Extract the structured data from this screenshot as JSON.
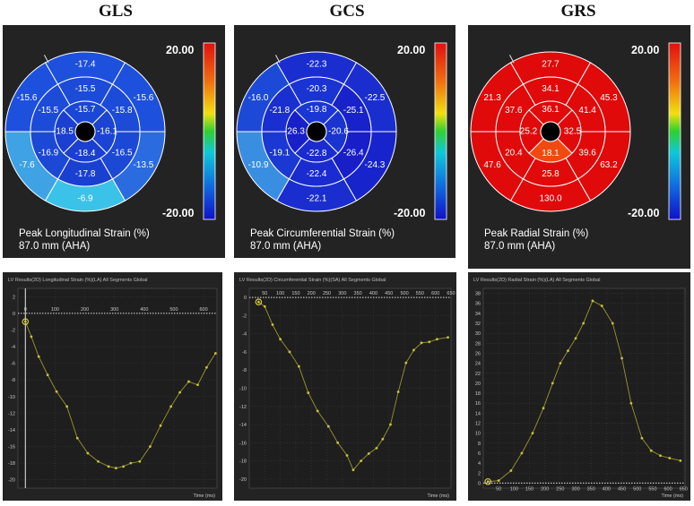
{
  "columns": [
    {
      "title": "GLS",
      "bullseye": {
        "caption1": "Peak Longitudinal Strain (%)",
        "caption2": "87.0 mm (AHA)",
        "scale_max": "20.00",
        "scale_min": "-20.00",
        "colormap": "blue-green-yellow-red",
        "rings": {
          "outer": [
            "-17.4",
            "-15.6",
            "-13.5",
            "-6.9",
            "-7.6",
            "-15.6"
          ],
          "middle": [
            "-15.5",
            "-15.8",
            "-16.5",
            "-17.8",
            "-16.9",
            "-15.5"
          ],
          "inner": [
            "-15.7",
            "-16.1",
            "-18.4",
            "-18.5"
          ]
        },
        "colors": {
          "outer": [
            "#1d50dc",
            "#1d50dc",
            "#2a6be0",
            "#3bc2e8",
            "#3fa2e5",
            "#1d50dc"
          ],
          "middle": [
            "#1c4bd8",
            "#1c4bd8",
            "#1c48d6",
            "#1a40d2",
            "#1c48d6",
            "#1c4bd8"
          ],
          "inner": [
            "#1b47d6",
            "#1b44d4",
            "#1a3fd1",
            "#1a3fd1"
          ]
        }
      },
      "line_chart": {
        "header": "LV Results(2D) Longitudinal Strain (%)(LA) All Segments Global",
        "x_unit": "Time (ms)",
        "x_ticks": [
          "0",
          "100",
          "200",
          "300",
          "400",
          "500",
          "600"
        ],
        "y_ticks": [
          "2",
          "0",
          "-2",
          "-4",
          "-6",
          "-8",
          "-10",
          "-12",
          "-14",
          "-16",
          "-18",
          "-20"
        ]
      }
    },
    {
      "title": "GCS",
      "bullseye": {
        "caption1": "Peak Circumferential Strain (%)",
        "caption2": "87.0 mm (AHA)",
        "scale_max": "20.00",
        "scale_min": "-20.00",
        "colormap": "blue-green-yellow-red",
        "rings": {
          "outer": [
            "-22.3",
            "-22.5",
            "-24.3",
            "-22.1",
            "-10.9",
            "-16.0"
          ],
          "middle": [
            "-20.3",
            "-25.1",
            "-26.4",
            "-22.4",
            "-19.1",
            "-21.8"
          ],
          "inner": [
            "-19.8",
            "-20.6",
            "-22.8",
            "-26.3"
          ]
        },
        "colors": {
          "outer": [
            "#1a2ed0",
            "#1a2ed0",
            "#1824cb",
            "#1a2ed0",
            "#3a8ee2",
            "#1c4ad7"
          ],
          "middle": [
            "#1a34d2",
            "#1822ca",
            "#181ec8",
            "#1a2ccf",
            "#1b38d3",
            "#1a2fd0"
          ],
          "inner": [
            "#1a36d3",
            "#1a34d2",
            "#1a2ccf",
            "#1820c9"
          ]
        }
      },
      "line_chart": {
        "header": "LV Results(2D) Circumferential Strain (%)(SA) All Segments Global",
        "x_unit": "Time (ms)",
        "x_ticks": [
          "50",
          "100",
          "150",
          "200",
          "250",
          "300",
          "350",
          "400",
          "450",
          "500",
          "550",
          "600",
          "650"
        ],
        "y_ticks": [
          "0",
          "-2",
          "-4",
          "-6",
          "-8",
          "-10",
          "-12",
          "-14",
          "-16",
          "-18",
          "-20"
        ]
      }
    },
    {
      "title": "GRS",
      "bullseye": {
        "caption1": "Peak Radial Strain (%)",
        "caption2": "87.0 mm (AHA)",
        "scale_max": "20.00",
        "scale_min": "-20.00",
        "colormap": "blue-green-yellow-red",
        "rings": {
          "outer": [
            "27.7",
            "45.3",
            "63.2",
            "130.0",
            "47.6",
            "21.3"
          ],
          "middle": [
            "34.1",
            "41.4",
            "39.6",
            "25.8",
            "20.4",
            "37.6"
          ],
          "inner": [
            "36.1",
            "32.5",
            "18.1",
            "25.2"
          ]
        },
        "colors": {
          "outer": [
            "#e00a0a",
            "#e00a0a",
            "#e00a0a",
            "#e00a0a",
            "#e00a0a",
            "#e00a0a"
          ],
          "middle": [
            "#e00a0a",
            "#e00a0a",
            "#e00a0a",
            "#e00a0a",
            "#e00a0a",
            "#e00a0a"
          ],
          "inner": [
            "#e00a0a",
            "#e00a0a",
            "#f04a10",
            "#e00a0a"
          ]
        }
      },
      "line_chart": {
        "header": "LV Results(2D) Radial Strain (%)(LA) All Segments Global",
        "x_unit": "Time (ms)",
        "x_ticks": [
          "50",
          "100",
          "150",
          "200",
          "250",
          "300",
          "350",
          "400",
          "450",
          "500",
          "550",
          "600",
          "650"
        ],
        "y_ticks": [
          "38",
          "36",
          "34",
          "32",
          "30",
          "28",
          "26",
          "24",
          "22",
          "20",
          "18",
          "16",
          "14",
          "12",
          "10",
          "8",
          "6",
          "4",
          "2",
          "0"
        ]
      }
    }
  ],
  "chart_data": [
    {
      "type": "line",
      "title": "LV Results(2D) Longitudinal Strain (%)(LA) All Segments Global",
      "xlabel": "Time (ms)",
      "ylabel": "",
      "xlim": [
        -25,
        645
      ],
      "ylim": [
        -21,
        3
      ],
      "grid": true,
      "series": [
        {
          "color": "#c9c23a",
          "x": [
            0,
            20,
            45,
            75,
            105,
            140,
            175,
            210,
            245,
            280,
            305,
            330,
            355,
            385,
            420,
            455,
            490,
            520,
            550,
            580,
            610,
            640
          ],
          "y": [
            -1.0,
            -2.8,
            -5.2,
            -7.4,
            -9.4,
            -11.2,
            -15.0,
            -16.8,
            -17.8,
            -18.4,
            -18.6,
            -18.4,
            -18.0,
            -17.8,
            -16.0,
            -13.5,
            -11.2,
            -9.5,
            -8.2,
            -8.6,
            -6.5,
            -4.8
          ]
        }
      ]
    },
    {
      "type": "line",
      "title": "LV Results(2D) Circumferential Strain (%)(SA) All Segments Global",
      "xlabel": "Time (ms)",
      "ylabel": "",
      "xlim": [
        0,
        650
      ],
      "ylim": [
        -21,
        1
      ],
      "grid": true,
      "series": [
        {
          "color": "#c9c23a",
          "x": [
            30,
            50,
            75,
            100,
            130,
            160,
            190,
            220,
            255,
            285,
            315,
            335,
            360,
            385,
            410,
            430,
            455,
            480,
            505,
            530,
            555,
            580,
            605,
            640
          ],
          "y": [
            -0.5,
            -1.0,
            -3.0,
            -4.6,
            -6.0,
            -7.6,
            -10.5,
            -12.5,
            -14.2,
            -16.0,
            -17.4,
            -19.0,
            -18.0,
            -17.2,
            -16.6,
            -15.6,
            -14.0,
            -10.4,
            -7.2,
            -5.8,
            -5.0,
            -4.9,
            -4.6,
            -4.4
          ]
        }
      ]
    },
    {
      "type": "line",
      "title": "LV Results(2D) Radial Strain (%)(LA) All Segments Global",
      "xlabel": "Time (ms)",
      "ylabel": "",
      "xlim": [
        0,
        655
      ],
      "ylim": [
        -1,
        39
      ],
      "grid": true,
      "series": [
        {
          "color": "#c9c23a",
          "x": [
            15,
            50,
            90,
            125,
            160,
            195,
            225,
            250,
            275,
            300,
            325,
            355,
            385,
            420,
            450,
            480,
            515,
            545,
            575,
            605,
            640
          ],
          "y": [
            0.3,
            0.5,
            2.5,
            6.0,
            10.0,
            15.0,
            20.0,
            24.0,
            26.5,
            29.0,
            32.0,
            36.5,
            35.5,
            32.0,
            25.0,
            16.0,
            9.0,
            6.5,
            5.5,
            5.0,
            4.5
          ]
        }
      ]
    }
  ]
}
